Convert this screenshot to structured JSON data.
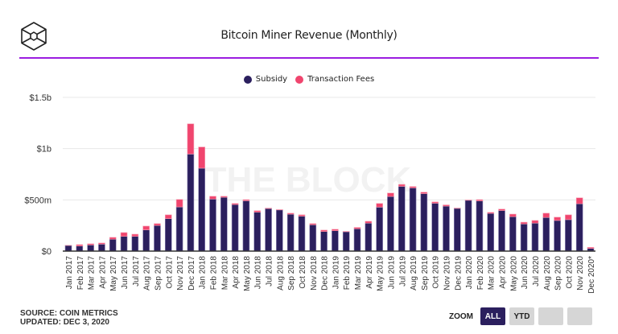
{
  "header": {
    "logo_icon": "the-block-cube-logo-icon",
    "title": "Bitcoin Miner Revenue (Monthly)"
  },
  "colors": {
    "subsidy": "#2b1f5e",
    "fees": "#f0456e",
    "accent_rule": "#9b1de0",
    "grid": "#e8e8e8",
    "watermark": "#f2f2f2"
  },
  "watermark": "THE BLOCK",
  "footer": {
    "source": "SOURCE: COIN METRICS",
    "updated": "UPDATED: DEC 3, 2020"
  },
  "zoom": {
    "label": "ZOOM",
    "buttons": [
      {
        "label": "ALL",
        "active": true
      },
      {
        "label": "YTD",
        "active": false
      },
      {
        "label": "",
        "active": false
      },
      {
        "label": "",
        "active": false
      }
    ]
  },
  "chart_data": {
    "type": "bar",
    "stacked": true,
    "title": "Bitcoin Miner Revenue (Monthly)",
    "xlabel": "",
    "ylabel": "",
    "ylim": [
      0,
      1500
    ],
    "y_unit": "USD millions",
    "y_ticks": [
      {
        "value": 0,
        "label": "$0"
      },
      {
        "value": 500,
        "label": "$500m"
      },
      {
        "value": 1000,
        "label": "$1b"
      },
      {
        "value": 1500,
        "label": "$1.5b"
      }
    ],
    "grid": true,
    "legend_position": "top-center",
    "categories": [
      "Jan 2017",
      "Feb 2017",
      "Mar 2017",
      "Apr 2017",
      "May 2017",
      "Jun 2017",
      "Jul 2017",
      "Aug 2017",
      "Sep 2017",
      "Oct 2017",
      "Nov 2017",
      "Dec 2017",
      "Jan 2018",
      "Feb 2018",
      "Mar 2018",
      "Apr 2018",
      "May 2018",
      "Jun 2018",
      "Jul 2018",
      "Aug 2018",
      "Sep 2018",
      "Oct 2018",
      "Nov 2018",
      "Dec 2018",
      "Jan 2019",
      "Feb 2019",
      "Mar 2019",
      "Apr 2019",
      "May 2019",
      "Jun 2019",
      "Jul 2019",
      "Aug 2019",
      "Sep 2019",
      "Oct 2019",
      "Nov 2019",
      "Dec 2019",
      "Jan 2020",
      "Feb 2020",
      "Mar 2020",
      "Apr 2020",
      "May 2020",
      "Jun 2020",
      "Jul 2020",
      "Aug 2020",
      "Sep 2020",
      "Oct 2020",
      "Nov 2020",
      "Dec 2020*"
    ],
    "series": [
      {
        "name": "Subsidy",
        "color": "#2b1f5e",
        "values": [
          55,
          50,
          60,
          68,
          116,
          144,
          144,
          207,
          250,
          317,
          431,
          947,
          809,
          508,
          525,
          454,
          491,
          380,
          415,
          402,
          360,
          341,
          257,
          191,
          199,
          189,
          218,
          273,
          429,
          533,
          632,
          617,
          561,
          467,
          439,
          417,
          496,
          490,
          368,
          396,
          336,
          265,
          273,
          328,
          299,
          307,
          462,
          26
        ]
      },
      {
        "name": "Transaction Fees",
        "color": "#f0456e",
        "values": [
          2,
          13,
          11,
          11,
          18,
          37,
          21,
          37,
          18,
          37,
          73,
          295,
          207,
          27,
          10,
          11,
          11,
          14,
          5,
          4,
          10,
          13,
          11,
          14,
          14,
          4,
          13,
          18,
          36,
          34,
          19,
          13,
          14,
          13,
          12,
          4,
          4,
          12,
          10,
          14,
          25,
          17,
          26,
          42,
          32,
          47,
          58,
          11
        ]
      }
    ]
  }
}
